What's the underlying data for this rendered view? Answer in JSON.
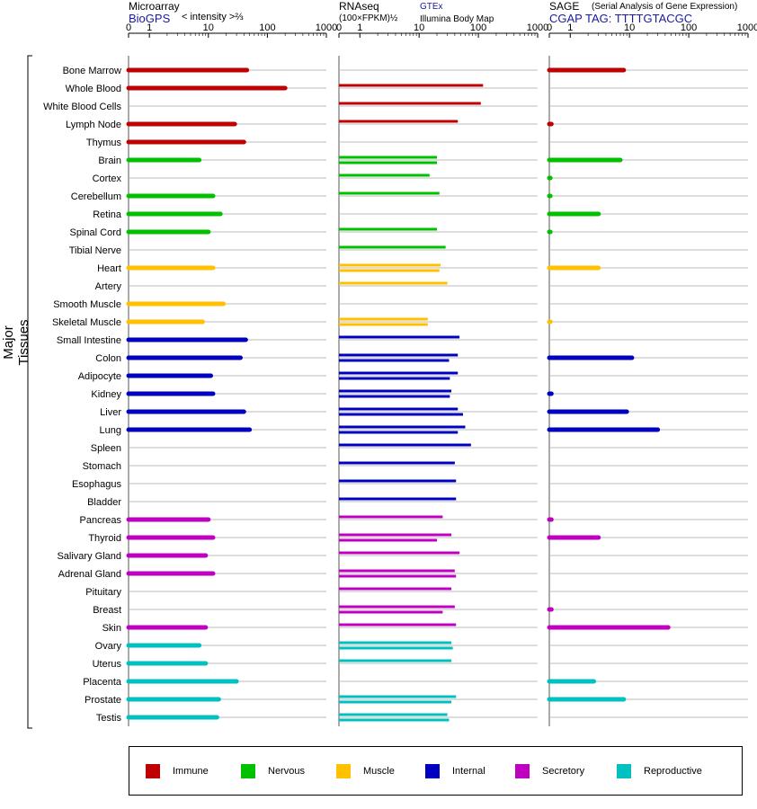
{
  "panels": [
    {
      "title": "Microarray",
      "source": "BioGPS",
      "measure": "< intensity >⅔"
    },
    {
      "title": "RNAseq",
      "measure": "(100×FPKM)½",
      "source_top": "GTEx",
      "source_bottom": "Illumina Body Map"
    },
    {
      "title": "SAGE",
      "title_note": "(Serial Analysis of Gene Expression)",
      "tag": "CGAP TAG: TTTTGTACGC"
    }
  ],
  "axis_ticks": [
    "0",
    "1",
    "10",
    "100",
    "1000"
  ],
  "y_group_label": "Major Tissues",
  "legend": [
    {
      "name": "Immune",
      "color": "#c00000"
    },
    {
      "name": "Nervous",
      "color": "#00c000"
    },
    {
      "name": "Muscle",
      "color": "#ffc000"
    },
    {
      "name": "Internal",
      "color": "#0000c0"
    },
    {
      "name": "Secretory",
      "color": "#c000c0"
    },
    {
      "name": "Reproductive",
      "color": "#00c0c0"
    }
  ],
  "chart_data": {
    "type": "bar",
    "orientation": "horizontal",
    "x_scale": "log",
    "xlim": [
      0,
      1000
    ],
    "categories": [
      "Bone Marrow",
      "Whole Blood",
      "White Blood Cells",
      "Lymph Node",
      "Thymus",
      "Brain",
      "Cortex",
      "Cerebellum",
      "Retina",
      "Spinal Cord",
      "Tibial Nerve",
      "Heart",
      "Artery",
      "Smooth Muscle",
      "Skeletal Muscle",
      "Small Intestine",
      "Colon",
      "Adipocyte",
      "Kidney",
      "Liver",
      "Lung",
      "Spleen",
      "Stomach",
      "Esophagus",
      "Bladder",
      "Pancreas",
      "Thyroid",
      "Salivary Gland",
      "Adrenal Gland",
      "Pituitary",
      "Breast",
      "Skin",
      "Ovary",
      "Uterus",
      "Placenta",
      "Prostate",
      "Testis"
    ],
    "system": [
      "Immune",
      "Immune",
      "Immune",
      "Immune",
      "Immune",
      "Nervous",
      "Nervous",
      "Nervous",
      "Nervous",
      "Nervous",
      "Nervous",
      "Muscle",
      "Muscle",
      "Muscle",
      "Muscle",
      "Internal",
      "Internal",
      "Internal",
      "Internal",
      "Internal",
      "Internal",
      "Internal",
      "Internal",
      "Internal",
      "Internal",
      "Secretory",
      "Secretory",
      "Secretory",
      "Secretory",
      "Secretory",
      "Secretory",
      "Secretory",
      "Reproductive",
      "Reproductive",
      "Reproductive",
      "Reproductive",
      "Reproductive"
    ],
    "series": [
      {
        "name": "Microarray",
        "values": [
          45,
          200,
          null,
          28,
          40,
          7,
          null,
          12,
          16,
          10,
          null,
          12,
          null,
          18,
          8,
          43,
          35,
          11,
          12,
          40,
          50,
          null,
          null,
          null,
          null,
          10,
          12,
          9,
          12,
          null,
          null,
          9,
          7,
          9,
          30,
          15,
          14
        ]
      },
      {
        "name": "RNAseq GTEx",
        "values": [
          null,
          120,
          null,
          null,
          null,
          20,
          null,
          null,
          null,
          null,
          null,
          23,
          null,
          null,
          14,
          null,
          45,
          null,
          null,
          45,
          60,
          null,
          null,
          null,
          null,
          null,
          null,
          null,
          null,
          null,
          null,
          null,
          null,
          null,
          null,
          null,
          null
        ]
      },
      {
        "name": "RNAseq Illumina Body Map",
        "values": [
          null,
          null,
          null,
          null,
          null,
          null,
          null,
          null,
          null,
          null,
          null,
          null,
          null,
          null,
          null,
          null,
          null,
          null,
          null,
          null,
          null,
          null,
          null,
          null,
          null,
          null,
          null,
          null,
          null,
          null,
          null,
          null,
          null,
          null,
          null,
          null,
          null
        ]
      },
      {
        "name": "SAGE",
        "values": [
          8,
          null,
          null,
          0.1,
          null,
          7,
          0.05,
          0.05,
          3,
          0.05,
          null,
          3,
          null,
          null,
          0.05,
          null,
          11,
          null,
          0.1,
          9,
          30,
          null,
          null,
          null,
          null,
          0.1,
          3,
          null,
          null,
          null,
          0.1,
          45,
          null,
          null,
          2.5,
          8,
          null
        ]
      }
    ],
    "rnaseq": [
      [],
      [
        120
      ],
      [
        110
      ],
      [
        45
      ],
      [],
      [
        20,
        20
      ],
      [
        15
      ],
      [
        22
      ],
      [],
      [
        20
      ],
      [
        28
      ],
      [
        23,
        22
      ],
      [
        30
      ],
      [],
      [
        14,
        14
      ],
      [
        48
      ],
      [
        45,
        32
      ],
      [
        45,
        33
      ],
      [
        35,
        33
      ],
      [
        45,
        55
      ],
      [
        60,
        45
      ],
      [
        75
      ],
      [
        40
      ],
      [
        42
      ],
      [
        42
      ],
      [
        25
      ],
      [
        35,
        20
      ],
      [
        48
      ],
      [
        40,
        42
      ],
      [
        35
      ],
      [
        40,
        25
      ],
      [
        42
      ],
      [
        35,
        37
      ],
      [
        35
      ],
      [],
      [
        42,
        35
      ],
      [
        30,
        32
      ]
    ]
  }
}
